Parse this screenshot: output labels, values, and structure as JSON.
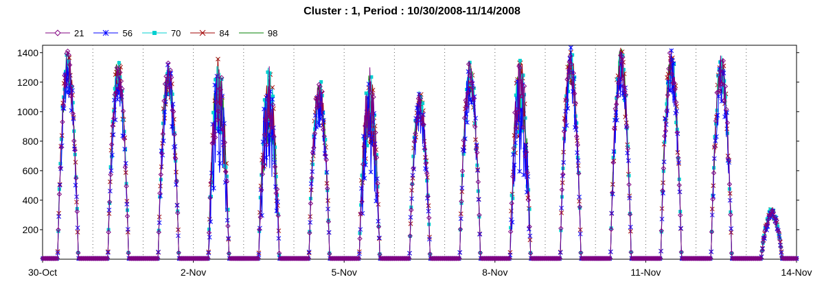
{
  "chart_data": {
    "type": "line",
    "title": "Cluster : 1, Period : 10/30/2008-11/14/2008",
    "xlabel": "",
    "ylabel": "",
    "ylim": [
      0,
      1450
    ],
    "yticks": [
      200,
      400,
      600,
      800,
      1000,
      1200,
      1400
    ],
    "x_ticks": [
      "30-Oct",
      "2-Nov",
      "5-Nov",
      "8-Nov",
      "11-Nov",
      "14-Nov"
    ],
    "x_range_days": [
      0,
      15
    ],
    "grid": "dotted vertical lines at each day",
    "legend_position": "top-left",
    "series": [
      {
        "name": "21",
        "color": "#800080",
        "marker": "diamond"
      },
      {
        "name": "56",
        "color": "#0000ff",
        "marker": "asterisk"
      },
      {
        "name": "70",
        "color": "#00d0d0",
        "marker": "square"
      },
      {
        "name": "84",
        "color": "#a00000",
        "marker": "x"
      },
      {
        "name": "98",
        "color": "#008000",
        "marker": "none"
      }
    ],
    "daily_peaks": [
      {
        "day": "30-Oct",
        "peak": 1420
      },
      {
        "day": "31-Oct",
        "peak": 1380
      },
      {
        "day": "1-Nov",
        "peak": 1340
      },
      {
        "day": "2-Nov",
        "peak": 1380
      },
      {
        "day": "3-Nov",
        "peak": 1320
      },
      {
        "day": "4-Nov",
        "peak": 1240
      },
      {
        "day": "5-Nov",
        "peak": 1300
      },
      {
        "day": "6-Nov",
        "peak": 1150
      },
      {
        "day": "7-Nov",
        "peak": 1350
      },
      {
        "day": "8-Nov",
        "peak": 1400
      },
      {
        "day": "9-Nov",
        "peak": 1440
      },
      {
        "day": "10-Nov",
        "peak": 1440
      },
      {
        "day": "11-Nov",
        "peak": 1440
      },
      {
        "day": "12-Nov",
        "peak": 1390
      },
      {
        "day": "13-Nov",
        "peak": 340
      }
    ]
  }
}
